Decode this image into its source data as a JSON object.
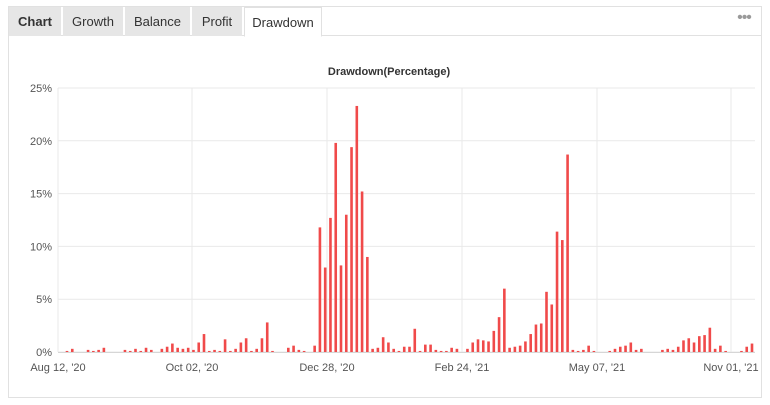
{
  "tabs": [
    {
      "label": "Chart"
    },
    {
      "label": "Growth"
    },
    {
      "label": "Balance"
    },
    {
      "label": "Profit"
    },
    {
      "label": "Drawdown"
    }
  ],
  "menu_icon": "more-dots-icon",
  "colors": {
    "bar": "#f04a4a",
    "grid": "#e9e9e9",
    "tab_gray": "#e6e6e6"
  },
  "chart_data": {
    "type": "bar",
    "title": "Drawdown(Percentage)",
    "xlabel": "",
    "ylabel": "",
    "ylim": [
      0,
      25
    ],
    "yticks": [
      "0%",
      "5%",
      "10%",
      "15%",
      "20%",
      "25%"
    ],
    "xticks": [
      "Aug 12, '20",
      "Oct 02, '20",
      "Dec 28, '20",
      "Feb 24, '21",
      "May 07, '21",
      "Nov 01, '21"
    ],
    "grid": true,
    "values": [
      0.1,
      0.3,
      0,
      0,
      0.2,
      0.1,
      0.2,
      0.4,
      0,
      0,
      0,
      0.2,
      0.1,
      0.3,
      0.1,
      0.4,
      0.2,
      0,
      0.3,
      0.5,
      0.8,
      0.4,
      0.3,
      0.4,
      0.2,
      0.9,
      1.7,
      0.1,
      0.2,
      0.1,
      1.2,
      0.1,
      0.3,
      0.9,
      1.3,
      0.1,
      0.3,
      1.3,
      2.8,
      0.1,
      0,
      0,
      0.4,
      0.6,
      0.2,
      0.1,
      0,
      0.6,
      11.8,
      8.0,
      12.7,
      19.8,
      8.2,
      13.0,
      19.4,
      23.3,
      15.2,
      9.0,
      0.3,
      0.4,
      1.4,
      0.9,
      0.3,
      0.1,
      0.5,
      0.5,
      2.2,
      0.1,
      0.7,
      0.7,
      0.2,
      0.1,
      0.1,
      0.4,
      0.3,
      0,
      0.3,
      0.9,
      1.2,
      1.1,
      1.0,
      2.0,
      3.3,
      6.0,
      0.4,
      0.5,
      0.6,
      1.0,
      1.7,
      2.6,
      2.7,
      5.7,
      4.5,
      11.4,
      10.6,
      18.7,
      0.2,
      0.1,
      0.2,
      0.6,
      0.1,
      0,
      0,
      0.1,
      0.3,
      0.5,
      0.6,
      0.9,
      0.2,
      0.3,
      0,
      0,
      0,
      0.2,
      0.3,
      0.2,
      0.5,
      1.1,
      1.3,
      0.9,
      1.5,
      1.6,
      2.3,
      0.3,
      0.6,
      0.1,
      0,
      0,
      0.1,
      0.5,
      0.8
    ]
  }
}
